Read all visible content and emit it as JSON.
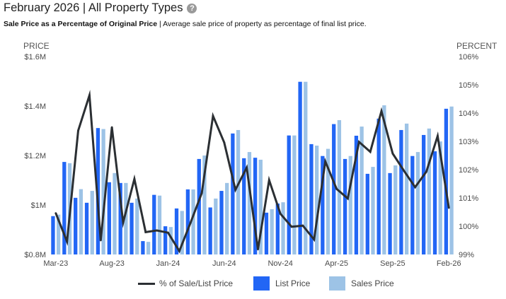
{
  "header": {
    "title": "February 2026 | All Property Types",
    "help_icon": "question-circle-icon",
    "subtitle_bold": "Sale Price as a Percentage of Original Price",
    "subtitle_rest": " | Average sale price of property as percentage of final list price."
  },
  "colors": {
    "list_price": "#2266f5",
    "sales_price": "#9dc3e6",
    "pct_line": "#2b2f33"
  },
  "legend": {
    "pct_label": "% of Sale/List Price",
    "list_label": "List Price",
    "sales_label": "Sales Price"
  },
  "chart_data": {
    "type": "bar",
    "title": "Sale Price as a Percentage of Original Price",
    "xlabel": "",
    "ylabel": "PRICE",
    "y2label": "PERCENT",
    "ylim": [
      0.8,
      1.6
    ],
    "y2lim": [
      99,
      106
    ],
    "y_ticks": [
      "$0.8M",
      "$1M",
      "$1.2M",
      "$1.4M",
      "$1.6M"
    ],
    "y_tick_values": [
      0.8,
      1.0,
      1.2,
      1.4,
      1.6
    ],
    "y2_ticks": [
      "99%",
      "100%",
      "101%",
      "102%",
      "103%",
      "104%",
      "105%",
      "106%"
    ],
    "y2_tick_values": [
      99,
      100,
      101,
      102,
      103,
      104,
      105,
      106
    ],
    "x_tick_labels": [
      "Mar-23",
      "Aug-23",
      "Jan-24",
      "Jun-24",
      "Nov-24",
      "Apr-25",
      "Sep-25",
      "Feb-26"
    ],
    "x_tick_every": 5,
    "grid": false,
    "legend_position": "bottom",
    "categories": [
      "Mar-23",
      "Apr-23",
      "May-23",
      "Jun-23",
      "Jul-23",
      "Aug-23",
      "Sep-23",
      "Oct-23",
      "Nov-23",
      "Dec-23",
      "Jan-24",
      "Feb-24",
      "Mar-24",
      "Apr-24",
      "May-24",
      "Jun-24",
      "Jul-24",
      "Aug-24",
      "Sep-24",
      "Oct-24",
      "Nov-24",
      "Dec-24",
      "Jan-25",
      "Feb-25",
      "Mar-25",
      "Apr-25",
      "May-25",
      "Jun-25",
      "Jul-25",
      "Aug-25",
      "Sep-25",
      "Oct-25",
      "Nov-25",
      "Dec-25",
      "Jan-26",
      "Feb-26"
    ],
    "series": [
      {
        "name": "List Price",
        "type": "bar",
        "axis": "left",
        "unit": "$M",
        "values": [
          0.955,
          1.174,
          1.029,
          1.009,
          1.311,
          1.092,
          1.089,
          1.009,
          0.854,
          1.041,
          0.914,
          0.986,
          1.063,
          1.186,
          0.99,
          1.057,
          1.289,
          1.189,
          1.191,
          0.969,
          1.006,
          1.281,
          1.498,
          1.246,
          1.198,
          1.327,
          1.186,
          1.28,
          1.126,
          1.349,
          1.129,
          1.303,
          1.198,
          1.283,
          1.217,
          1.389
        ]
      },
      {
        "name": "Sales Price",
        "type": "bar",
        "axis": "left",
        "unit": "$M",
        "values": [
          0.961,
          1.169,
          1.064,
          1.057,
          1.307,
          1.129,
          1.089,
          1.026,
          0.851,
          1.038,
          0.911,
          0.976,
          1.063,
          1.2,
          1.026,
          1.089,
          1.303,
          1.214,
          1.183,
          0.983,
          1.011,
          1.281,
          1.498,
          1.24,
          1.227,
          1.343,
          1.198,
          1.317,
          1.154,
          1.403,
          1.16,
          1.329,
          1.214,
          1.309,
          1.257,
          1.398
        ]
      },
      {
        "name": "% of Sale/List Price",
        "type": "line",
        "axis": "right",
        "unit": "%",
        "values": [
          100.46,
          99.46,
          103.38,
          104.63,
          99.5,
          103.5,
          100.13,
          101.67,
          99.79,
          99.85,
          99.77,
          99.12,
          100.12,
          101.17,
          103.9,
          102.96,
          101.29,
          102.07,
          99.18,
          101.63,
          100.44,
          99.98,
          100.02,
          99.53,
          102.29,
          101.32,
          100.98,
          102.98,
          102.63,
          104.07,
          102.57,
          101.96,
          101.38,
          101.93,
          103.19,
          100.65
        ]
      }
    ]
  }
}
